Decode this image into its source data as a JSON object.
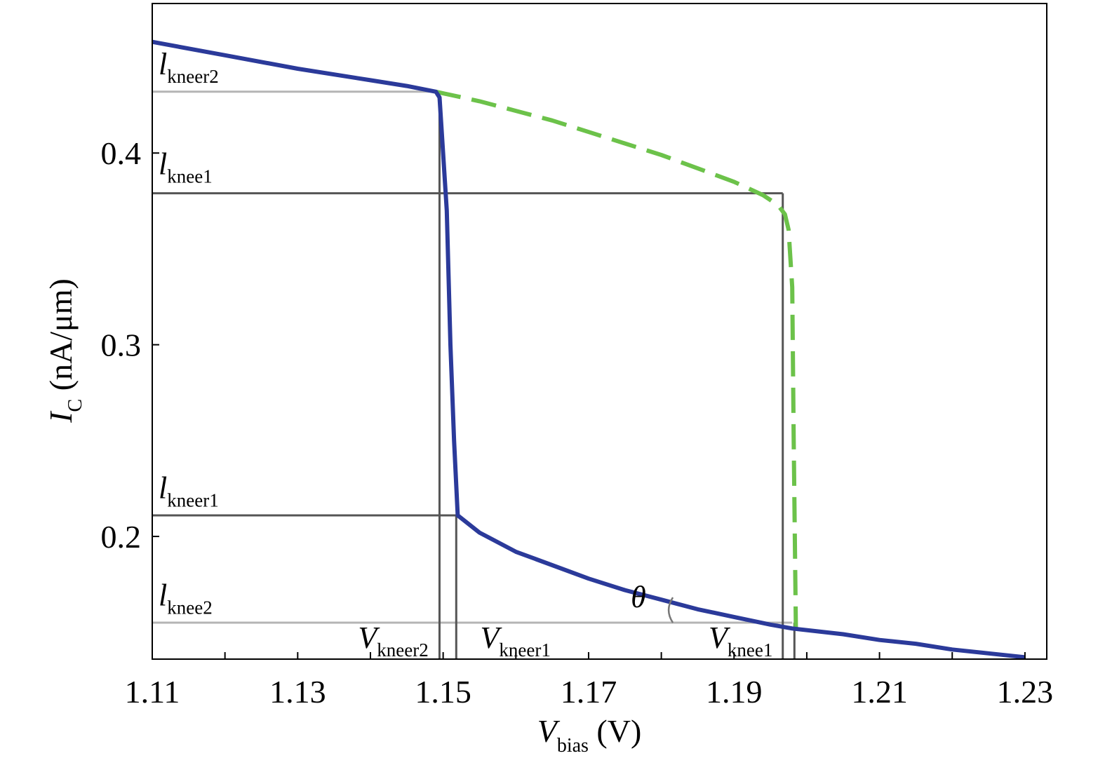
{
  "chart_data": {
    "type": "line",
    "title": "",
    "xlabel": {
      "main": "V",
      "sub": "bias",
      "unit": " (V)"
    },
    "ylabel": {
      "main": "I",
      "sub": "C",
      "unit": " (nA/μm)"
    },
    "xlim": [
      1.11,
      1.233
    ],
    "ylim": [
      0.136,
      0.478
    ],
    "xticks": [
      1.11,
      1.13,
      1.15,
      1.17,
      1.19,
      1.21,
      1.23
    ],
    "xtick_labels": [
      "1.11",
      "1.13",
      "1.15",
      "1.17",
      "1.19",
      "1.21",
      "1.23"
    ],
    "yticks": [
      0.2,
      0.3,
      0.4
    ],
    "ytick_labels": [
      "0.2",
      "0.3",
      "0.4"
    ],
    "minor_xticks": [
      1.12,
      1.14,
      1.16,
      1.18,
      1.2,
      1.22
    ],
    "series": [
      {
        "style": "solid",
        "color": "#2b3a9a",
        "x": [
          1.11,
          1.12,
          1.13,
          1.14,
          1.145,
          1.149,
          1.1495,
          1.1505,
          1.151,
          1.1515,
          1.152,
          1.155,
          1.16,
          1.165,
          1.17,
          1.175,
          1.18,
          1.185,
          1.19,
          1.195,
          1.198,
          1.205,
          1.21,
          1.215,
          1.22,
          1.225,
          1.23
        ],
        "y": [
          0.458,
          0.451,
          0.444,
          0.438,
          0.435,
          0.432,
          0.429,
          0.37,
          0.3,
          0.25,
          0.211,
          0.202,
          0.192,
          0.185,
          0.178,
          0.172,
          0.167,
          0.162,
          0.158,
          0.154,
          0.152,
          0.149,
          0.146,
          0.144,
          0.141,
          0.139,
          0.137
        ]
      },
      {
        "style": "dashed",
        "color": "#6cc24a",
        "x": [
          1.149,
          1.155,
          1.16,
          1.165,
          1.17,
          1.175,
          1.18,
          1.185,
          1.19,
          1.194,
          1.196,
          1.197,
          1.1975,
          1.198,
          1.1982,
          1.1985
        ],
        "y": [
          0.432,
          0.427,
          0.422,
          0.417,
          0.411,
          0.405,
          0.399,
          0.392,
          0.385,
          0.378,
          0.373,
          0.368,
          0.36,
          0.33,
          0.25,
          0.152
        ]
      }
    ],
    "guides": {
      "horizontal": [
        {
          "y": 0.432,
          "x_end": 1.149,
          "color": "#b5b5b5"
        },
        {
          "y": 0.379,
          "x_end": 1.1967,
          "color": "#555555"
        },
        {
          "y": 0.211,
          "x_end": 1.152,
          "color": "#555555"
        },
        {
          "y": 0.155,
          "x_end": 1.198,
          "color": "#b5b5b5"
        }
      ],
      "vertical": [
        {
          "x": 1.1495,
          "y_top": 0.432,
          "color": "#555555"
        },
        {
          "x": 1.1518,
          "y_top": 0.211,
          "color": "#555555"
        },
        {
          "x": 1.1967,
          "y_top": 0.379,
          "color": "#555555"
        },
        {
          "x": 1.1983,
          "y_top": 0.155,
          "color": "#555555"
        }
      ]
    },
    "annotations": {
      "i_labels": [
        {
          "main": "l",
          "sub": "kneer2",
          "y": 0.441
        },
        {
          "main": "l",
          "sub": "knee1",
          "y": 0.389
        },
        {
          "main": "l",
          "sub": "kneer1",
          "y": 0.22
        },
        {
          "main": "l",
          "sub": "knee2",
          "y": 0.164
        }
      ],
      "v_labels": [
        {
          "main": "V",
          "sub": "kneer2",
          "x": 1.1383
        },
        {
          "main": "V",
          "sub": "kneer1",
          "x": 1.1551
        },
        {
          "main": "V",
          "sub": "knee1",
          "x": 1.1865
        }
      ],
      "theta": {
        "text": "θ",
        "x": 1.1758,
        "y": 0.163
      }
    }
  }
}
